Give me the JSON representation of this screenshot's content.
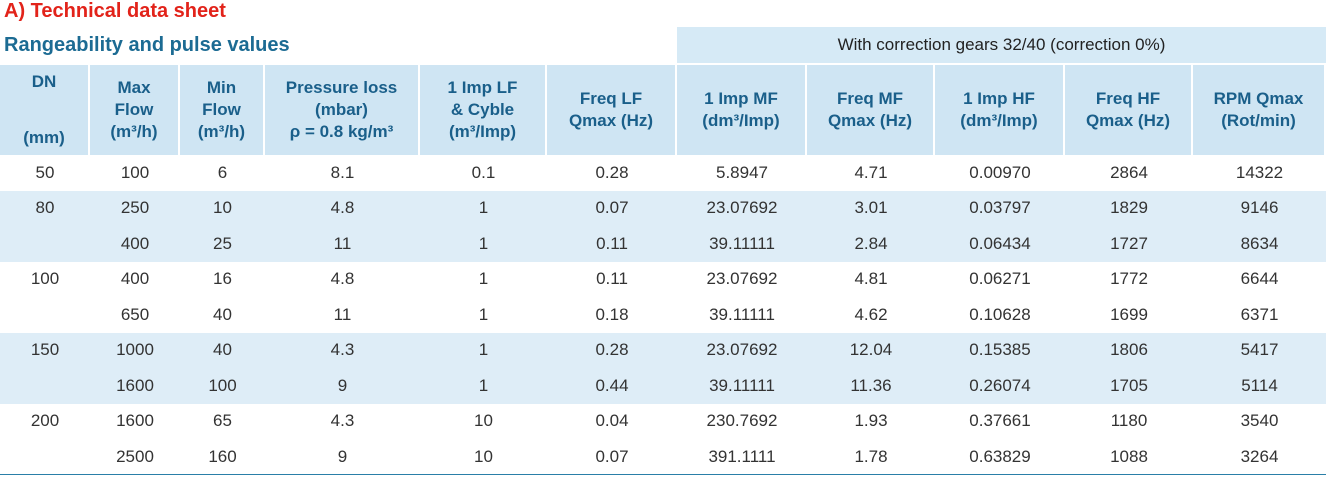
{
  "header": {
    "title": "A) Technical data sheet",
    "subtitle": "Rangeability and pulse values",
    "band": "With correction gears 32/40 (correction 0%)"
  },
  "table": {
    "columns": [
      [
        "DN",
        "(mm)"
      ],
      [
        "Max",
        "Flow",
        "(m³/h)"
      ],
      [
        "Min",
        "Flow",
        "(m³/h)"
      ],
      [
        "Pressure loss",
        "(mbar)",
        "ρ = 0.8 kg/m³"
      ],
      [
        "1 Imp LF",
        "& Cyble",
        "(m³/Imp)"
      ],
      [
        "Freq LF",
        "Qmax (Hz)"
      ],
      [
        "1 Imp MF",
        "(dm³/Imp)"
      ],
      [
        "Freq MF",
        "Qmax (Hz)"
      ],
      [
        "1 Imp HF",
        "(dm³/Imp)"
      ],
      [
        "Freq HF",
        "Qmax (Hz)"
      ],
      [
        "RPM Qmax",
        "(Rot/min)"
      ]
    ],
    "groups": [
      {
        "dn": "50",
        "rows": [
          [
            "100",
            "6",
            "8.1",
            "0.1",
            "0.28",
            "5.8947",
            "4.71",
            "0.00970",
            "2864",
            "14322"
          ]
        ]
      },
      {
        "dn": "80",
        "rows": [
          [
            "250",
            "10",
            "4.8",
            "1",
            "0.07",
            "23.07692",
            "3.01",
            "0.03797",
            "1829",
            "9146"
          ],
          [
            "400",
            "25",
            "11",
            "1",
            "0.11",
            "39.11111",
            "2.84",
            "0.06434",
            "1727",
            "8634"
          ]
        ]
      },
      {
        "dn": "100",
        "rows": [
          [
            "400",
            "16",
            "4.8",
            "1",
            "0.11",
            "23.07692",
            "4.81",
            "0.06271",
            "1772",
            "6644"
          ],
          [
            "650",
            "40",
            "11",
            "1",
            "0.18",
            "39.11111",
            "4.62",
            "0.10628",
            "1699",
            "6371"
          ]
        ]
      },
      {
        "dn": "150",
        "rows": [
          [
            "1000",
            "40",
            "4.3",
            "1",
            "0.28",
            "23.07692",
            "12.04",
            "0.15385",
            "1806",
            "5417"
          ],
          [
            "1600",
            "100",
            "9",
            "1",
            "0.44",
            "39.11111",
            "11.36",
            "0.26074",
            "1705",
            "5114"
          ]
        ]
      },
      {
        "dn": "200",
        "rows": [
          [
            "1600",
            "65",
            "4.3",
            "10",
            "0.04",
            "230.7692",
            "1.93",
            "0.37661",
            "1180",
            "3540"
          ],
          [
            "2500",
            "160",
            "9",
            "10",
            "0.07",
            "391.1111",
            "1.78",
            "0.63829",
            "1088",
            "3264"
          ]
        ]
      }
    ]
  }
}
